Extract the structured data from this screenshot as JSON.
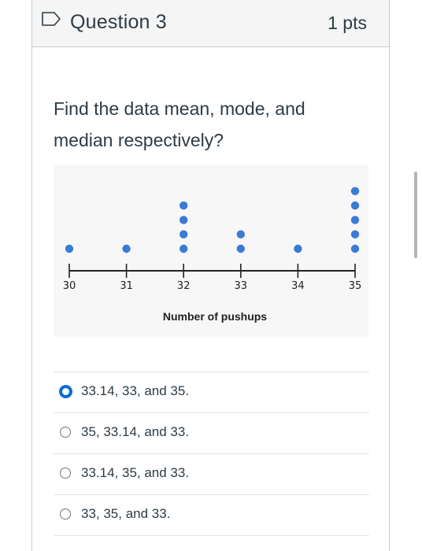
{
  "question": {
    "title": "Question 3",
    "points": "1 pts",
    "prompt": "Find the data mean, mode, and median respectively?"
  },
  "chart_data": {
    "type": "scatter",
    "title": "",
    "xlabel": "Number of pushups",
    "ylabel": "",
    "xlim": [
      30,
      35
    ],
    "ticks": [
      "30",
      "31",
      "32",
      "33",
      "34",
      "35"
    ],
    "points": [
      {
        "x": 30,
        "count": 1
      },
      {
        "x": 31,
        "count": 1
      },
      {
        "x": 32,
        "count": 4
      },
      {
        "x": 33,
        "count": 2
      },
      {
        "x": 34,
        "count": 1
      },
      {
        "x": 35,
        "count": 5
      }
    ],
    "dot_color": "#3a7bd5"
  },
  "answers": [
    {
      "label": "33.14, 33, and 35.",
      "selected": true
    },
    {
      "label": "35, 33.14, and 33.",
      "selected": false
    },
    {
      "label": "33.14, 35, and 33.",
      "selected": false
    },
    {
      "label": "33, 35, and 33.",
      "selected": false
    }
  ],
  "colors": {
    "accent": "#0b6cd6",
    "text": "#2d3b45"
  }
}
